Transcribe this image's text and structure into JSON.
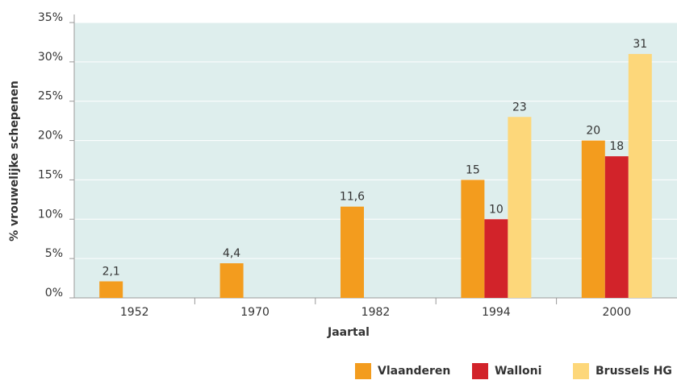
{
  "chart_data": {
    "type": "bar",
    "x_label": "Jaartal",
    "y_label": "% vrouwelijke schepenen",
    "categories": [
      "1952",
      "1970",
      "1982",
      "1994",
      "2000"
    ],
    "series": [
      {
        "name": "Vlaanderen",
        "color": "#f39c1e",
        "values": [
          2.1,
          4.4,
          11.6,
          15,
          20
        ],
        "value_labels": [
          "2,1",
          "4,4",
          "11,6",
          "15",
          "20"
        ]
      },
      {
        "name": "Walloni",
        "color": "#d2232a",
        "values": [
          null,
          null,
          null,
          10,
          18
        ],
        "value_labels": [
          null,
          null,
          null,
          "10",
          "18"
        ]
      },
      {
        "name": "Brussels HG",
        "color": "#fdd77a",
        "values": [
          null,
          null,
          null,
          23,
          31
        ],
        "value_labels": [
          null,
          null,
          null,
          "23",
          "31"
        ]
      }
    ],
    "ylim": [
      0,
      35
    ],
    "yticks": [
      {
        "value": 0,
        "label": "0%"
      },
      {
        "value": 5,
        "label": "5%"
      },
      {
        "value": 10,
        "label": "10%"
      },
      {
        "value": 15,
        "label": "15%"
      },
      {
        "value": 20,
        "label": "20%"
      },
      {
        "value": 25,
        "label": "25%"
      },
      {
        "value": 30,
        "label": "30%"
      },
      {
        "value": 35,
        "label": "35%"
      }
    ],
    "grid": true,
    "legend": "bottom-right"
  }
}
